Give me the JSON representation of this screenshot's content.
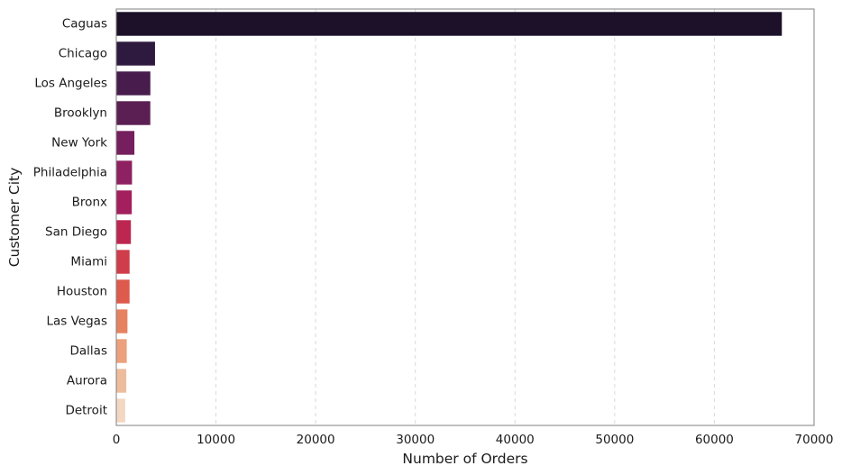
{
  "chart_data": {
    "type": "bar",
    "orientation": "horizontal",
    "title": "",
    "xlabel": "Number of Orders",
    "ylabel": "Customer City",
    "xlim": [
      0,
      70000
    ],
    "xticks": [
      0,
      10000,
      20000,
      30000,
      40000,
      50000,
      60000,
      70000
    ],
    "xtick_labels": [
      "0",
      "10000",
      "20000",
      "30000",
      "40000",
      "50000",
      "60000",
      "70000"
    ],
    "grid": "vertical dashed",
    "categories": [
      "Caguas",
      "Chicago",
      "Los Angeles",
      "Brooklyn",
      "New York",
      "Philadelphia",
      "Bronx",
      "San Diego",
      "Miami",
      "Houston",
      "Las Vegas",
      "Dallas",
      "Aurora",
      "Detroit"
    ],
    "values": [
      66770,
      3885,
      3417,
      3412,
      1816,
      1577,
      1552,
      1464,
      1333,
      1331,
      1120,
      1049,
      1005,
      894
    ],
    "colors": [
      "#1c1129",
      "#2f1a3f",
      "#481d4d",
      "#5b1f54",
      "#751f5e",
      "#8e2162",
      "#a31f5d",
      "#bd2650",
      "#d03d4a",
      "#dd5a4d",
      "#e78260",
      "#eda07c",
      "#eebc9c",
      "#f3d7c3"
    ]
  }
}
